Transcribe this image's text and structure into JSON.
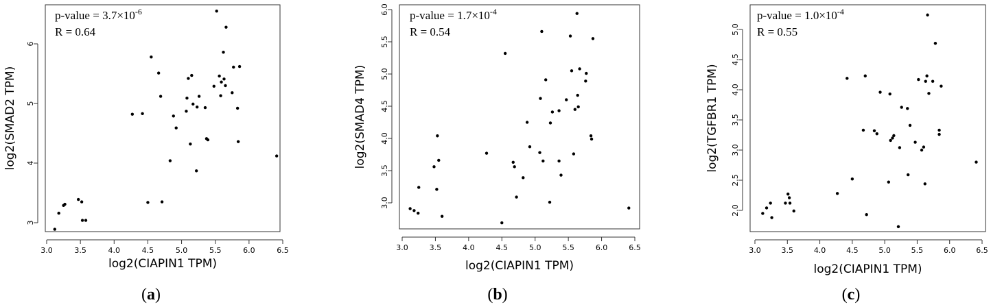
{
  "chart_data": [
    {
      "type": "scatter",
      "panel_label": "a",
      "xlabel": "log2(CIAPIN1 TPM)",
      "ylabel": "log2(SMAD2 TPM)",
      "xlim": [
        3.0,
        6.5
      ],
      "ylim": [
        2.8,
        6.7
      ],
      "xticks": [
        3.0,
        3.5,
        4.0,
        4.5,
        5.0,
        5.5,
        6.0,
        6.5
      ],
      "yticks": [
        3,
        4,
        5,
        6
      ],
      "annotation": {
        "pvalue_text": "p-value = 3.7×10",
        "pvalue_exp": "-6",
        "r_text": "R = 0.64"
      },
      "points": [
        [
          3.12,
          2.89
        ],
        [
          3.18,
          3.16
        ],
        [
          3.25,
          3.29
        ],
        [
          3.27,
          3.31
        ],
        [
          3.47,
          3.39
        ],
        [
          3.52,
          3.35
        ],
        [
          3.53,
          3.04
        ],
        [
          3.58,
          3.04
        ],
        [
          4.27,
          4.82
        ],
        [
          4.42,
          4.83
        ],
        [
          4.5,
          3.34
        ],
        [
          4.55,
          5.78
        ],
        [
          4.66,
          5.51
        ],
        [
          4.69,
          5.12
        ],
        [
          4.71,
          3.35
        ],
        [
          4.83,
          4.04
        ],
        [
          4.88,
          4.79
        ],
        [
          4.92,
          4.59
        ],
        [
          5.07,
          4.87
        ],
        [
          5.08,
          5.09
        ],
        [
          5.1,
          5.42
        ],
        [
          5.13,
          4.32
        ],
        [
          5.15,
          5.47
        ],
        [
          5.17,
          4.99
        ],
        [
          5.22,
          3.87
        ],
        [
          5.26,
          5.12
        ],
        [
          5.23,
          4.94
        ],
        [
          5.35,
          4.93
        ],
        [
          5.37,
          4.41
        ],
        [
          5.39,
          4.39
        ],
        [
          5.48,
          5.29
        ],
        [
          5.52,
          6.55
        ],
        [
          5.56,
          5.46
        ],
        [
          5.58,
          5.13
        ],
        [
          5.59,
          5.36
        ],
        [
          5.62,
          5.86
        ],
        [
          5.63,
          5.41
        ],
        [
          5.65,
          5.3
        ],
        [
          5.66,
          6.28
        ],
        [
          5.75,
          5.18
        ],
        [
          5.77,
          5.61
        ],
        [
          5.83,
          4.92
        ],
        [
          5.84,
          4.36
        ],
        [
          5.86,
          5.62
        ],
        [
          6.41,
          4.12
        ]
      ]
    },
    {
      "type": "scatter",
      "panel_label": "b",
      "xlabel": "log2(CIAPIN1 TPM)",
      "ylabel": "log2(SMAD4 TPM)",
      "xlim": [
        3.0,
        6.5
      ],
      "ylim": [
        2.6,
        6.05
      ],
      "xticks": [
        3.0,
        3.5,
        4.0,
        4.5,
        5.0,
        5.5,
        6.0,
        6.5
      ],
      "yticks": [
        3.0,
        3.5,
        4.0,
        4.5,
        5.0,
        5.5,
        6.0
      ],
      "annotation": {
        "pvalue_text": "p-value = 1.7×10",
        "pvalue_exp": "-4",
        "r_text": "R = 0.54"
      },
      "points": [
        [
          3.12,
          2.91
        ],
        [
          3.18,
          2.88
        ],
        [
          3.24,
          2.84
        ],
        [
          3.25,
          3.24
        ],
        [
          3.48,
          3.56
        ],
        [
          3.52,
          3.21
        ],
        [
          3.53,
          4.04
        ],
        [
          3.55,
          3.66
        ],
        [
          3.6,
          2.79
        ],
        [
          4.27,
          3.77
        ],
        [
          4.5,
          2.69
        ],
        [
          4.55,
          5.32
        ],
        [
          4.67,
          3.63
        ],
        [
          4.69,
          3.56
        ],
        [
          4.72,
          3.09
        ],
        [
          4.82,
          3.39
        ],
        [
          4.88,
          4.25
        ],
        [
          4.92,
          3.87
        ],
        [
          5.07,
          3.78
        ],
        [
          5.08,
          4.62
        ],
        [
          5.1,
          5.66
        ],
        [
          5.12,
          3.65
        ],
        [
          5.16,
          4.91
        ],
        [
          5.22,
          3.01
        ],
        [
          5.23,
          4.24
        ],
        [
          5.26,
          4.41
        ],
        [
          5.36,
          4.43
        ],
        [
          5.36,
          3.65
        ],
        [
          5.39,
          3.43
        ],
        [
          5.47,
          4.6
        ],
        [
          5.53,
          5.59
        ],
        [
          5.55,
          5.05
        ],
        [
          5.58,
          3.76
        ],
        [
          5.6,
          4.45
        ],
        [
          5.63,
          5.94
        ],
        [
          5.64,
          4.67
        ],
        [
          5.65,
          4.49
        ],
        [
          5.67,
          5.08
        ],
        [
          5.76,
          4.89
        ],
        [
          5.77,
          5.01
        ],
        [
          5.84,
          4.04
        ],
        [
          5.85,
          3.99
        ],
        [
          5.87,
          5.55
        ],
        [
          6.41,
          2.92
        ]
      ]
    },
    {
      "type": "scatter",
      "panel_label": "c",
      "xlabel": "log2(CIAPIN1 TPM)",
      "ylabel": "log2(TGFBR1 TPM)",
      "xlim": [
        3.0,
        6.5
      ],
      "ylim": [
        1.65,
        5.3
      ],
      "xticks": [
        3.0,
        3.5,
        4.0,
        4.5,
        5.0,
        5.5,
        6.0,
        6.5
      ],
      "yticks": [
        2.0,
        2.5,
        3.0,
        3.5,
        4.0,
        4.5,
        5.0
      ],
      "annotation": {
        "pvalue_text": "p-value = 1.0×10",
        "pvalue_exp": "-4",
        "r_text": "R = 0.55"
      },
      "points": [
        [
          3.12,
          1.95
        ],
        [
          3.18,
          2.04
        ],
        [
          3.24,
          2.12
        ],
        [
          3.26,
          1.88
        ],
        [
          3.47,
          2.12
        ],
        [
          3.51,
          2.27
        ],
        [
          3.53,
          2.21
        ],
        [
          3.54,
          2.12
        ],
        [
          3.6,
          1.99
        ],
        [
          4.27,
          2.28
        ],
        [
          4.42,
          4.19
        ],
        [
          4.5,
          2.52
        ],
        [
          4.67,
          3.33
        ],
        [
          4.7,
          4.23
        ],
        [
          4.72,
          1.93
        ],
        [
          4.84,
          3.32
        ],
        [
          4.88,
          3.27
        ],
        [
          4.93,
          3.96
        ],
        [
          5.06,
          2.47
        ],
        [
          5.08,
          3.93
        ],
        [
          5.09,
          3.16
        ],
        [
          5.12,
          3.2
        ],
        [
          5.14,
          3.24
        ],
        [
          5.21,
          1.73
        ],
        [
          5.23,
          3.04
        ],
        [
          5.26,
          3.71
        ],
        [
          5.35,
          3.69
        ],
        [
          5.36,
          2.59
        ],
        [
          5.39,
          3.41
        ],
        [
          5.47,
          3.13
        ],
        [
          5.52,
          4.17
        ],
        [
          5.57,
          3.0
        ],
        [
          5.6,
          3.05
        ],
        [
          5.62,
          2.44
        ],
        [
          5.63,
          4.14
        ],
        [
          5.65,
          4.23
        ],
        [
          5.66,
          5.24
        ],
        [
          5.68,
          3.94
        ],
        [
          5.74,
          4.14
        ],
        [
          5.78,
          4.77
        ],
        [
          5.84,
          3.26
        ],
        [
          5.84,
          3.33
        ],
        [
          5.87,
          4.06
        ],
        [
          6.41,
          2.8
        ]
      ]
    }
  ]
}
